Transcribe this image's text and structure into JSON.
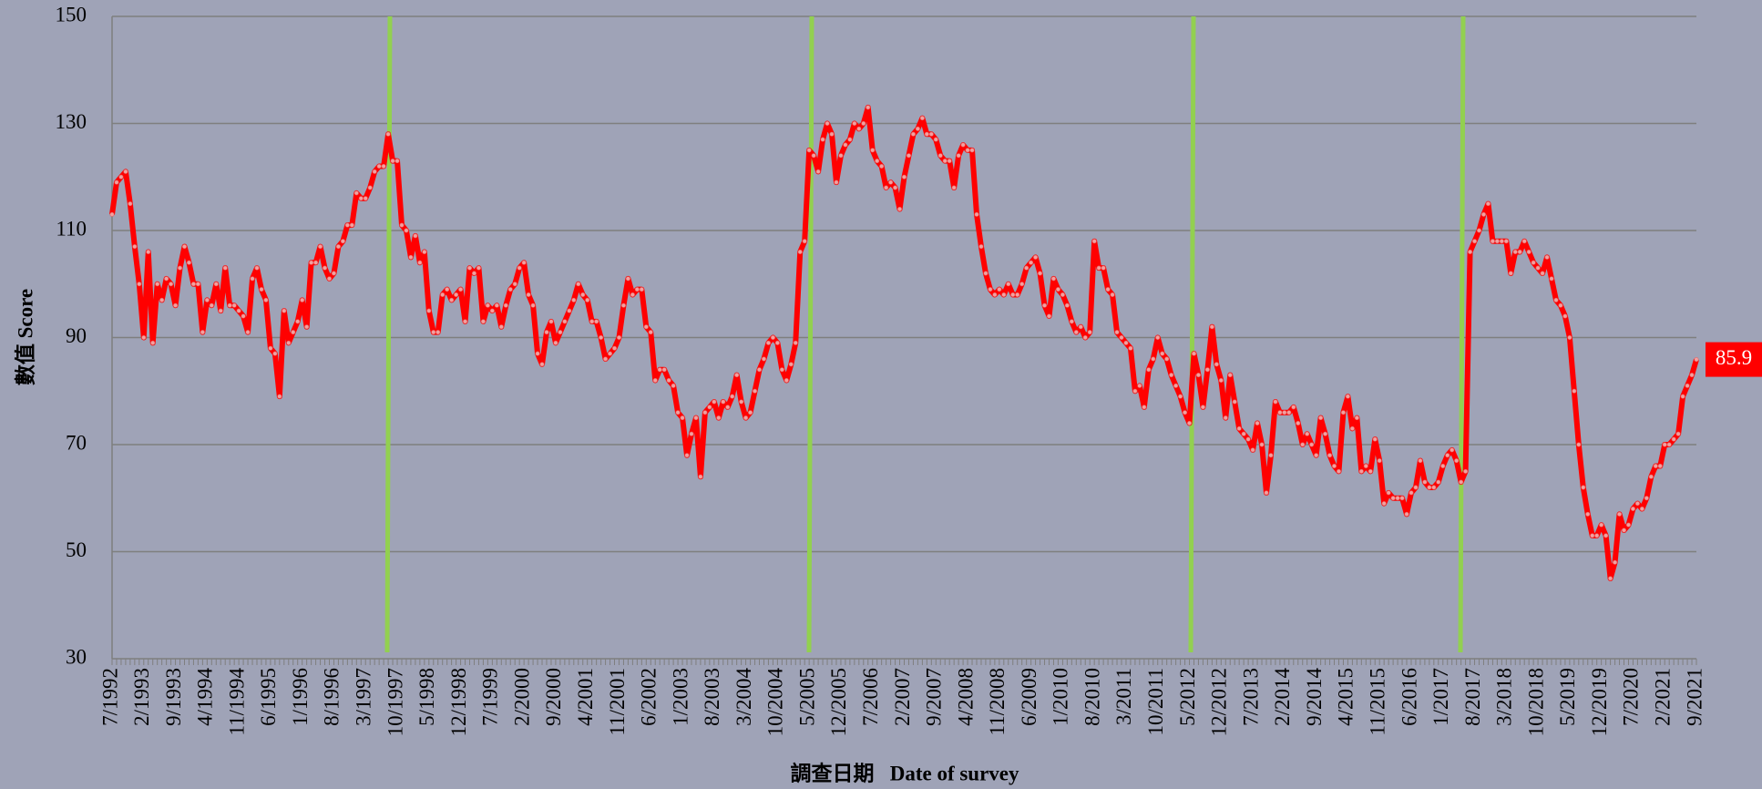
{
  "chart_data": {
    "type": "line",
    "ylabel": "數值 Score",
    "xlabel": "調查日期   Date of survey",
    "color": "#ff0000",
    "ylim": [
      30,
      150
    ],
    "yticks": [
      30,
      50,
      70,
      90,
      110,
      130,
      150
    ],
    "grid": true,
    "categories": [
      "7/1992",
      null,
      null,
      null,
      null,
      null,
      null,
      "2/1993",
      null,
      null,
      null,
      null,
      null,
      null,
      "9/1993",
      null,
      null,
      null,
      null,
      null,
      null,
      "4/1994",
      null,
      null,
      null,
      null,
      null,
      null,
      "11/1994",
      null,
      null,
      null,
      null,
      null,
      null,
      "6/1995",
      null,
      null,
      null,
      null,
      null,
      null,
      "1/1996",
      null,
      null,
      null,
      null,
      null,
      null,
      "8/1996",
      null,
      null,
      null,
      null,
      null,
      null,
      "3/1997",
      null,
      null,
      null,
      null,
      null,
      null,
      "10/1997",
      null,
      null,
      null,
      null,
      null,
      null,
      "5/1998",
      null,
      null,
      null,
      null,
      null,
      null,
      "12/1998",
      null,
      null,
      null,
      null,
      null,
      null,
      "7/1999",
      null,
      null,
      null,
      null,
      null,
      null,
      "2/2000",
      null,
      null,
      null,
      null,
      null,
      null,
      "9/2000",
      null,
      null,
      null,
      null,
      null,
      null,
      "4/2001",
      null,
      null,
      null,
      null,
      null,
      null,
      "11/2001",
      null,
      null,
      null,
      null,
      null,
      null,
      "6/2002",
      null,
      null,
      null,
      null,
      null,
      null,
      "1/2003",
      null,
      null,
      null,
      null,
      null,
      null,
      "8/2003",
      null,
      null,
      null,
      null,
      null,
      null,
      "3/2004",
      null,
      null,
      null,
      null,
      null,
      null,
      "10/2004",
      null,
      null,
      null,
      null,
      null,
      null,
      "5/2005",
      null,
      null,
      null,
      null,
      null,
      null,
      "12/2005",
      null,
      null,
      null,
      null,
      null,
      null,
      "7/2006",
      null,
      null,
      null,
      null,
      null,
      null,
      "2/2007",
      null,
      null,
      null,
      null,
      null,
      null,
      "9/2007",
      null,
      null,
      null,
      null,
      null,
      null,
      "4/2008",
      null,
      null,
      null,
      null,
      null,
      null,
      "11/2008",
      null,
      null,
      null,
      null,
      null,
      null,
      "6/2009",
      null,
      null,
      null,
      null,
      null,
      null,
      "1/2010",
      null,
      null,
      null,
      null,
      null,
      null,
      "8/2010",
      null,
      null,
      null,
      null,
      null,
      null,
      "3/2011",
      null,
      null,
      null,
      null,
      null,
      null,
      "10/2011",
      null,
      null,
      null,
      null,
      null,
      null,
      "5/2012",
      null,
      null,
      null,
      null,
      null,
      null,
      "12/2012",
      null,
      null,
      null,
      null,
      null,
      null,
      "7/2013",
      null,
      null,
      null,
      null,
      null,
      null,
      "2/2014",
      null,
      null,
      null,
      null,
      null,
      null,
      "9/2014",
      null,
      null,
      null,
      null,
      null,
      null,
      "4/2015",
      null,
      null,
      null,
      null,
      null,
      null,
      "11/2015",
      null,
      null,
      null,
      null,
      null,
      null,
      "6/2016",
      null,
      null,
      null,
      null,
      null,
      null,
      "1/2017",
      null,
      null,
      null,
      null,
      null,
      null,
      "8/2017",
      null,
      null,
      null,
      null,
      null,
      null,
      "3/2018",
      null,
      null,
      null,
      null,
      null,
      null,
      "10/2018",
      null,
      null,
      null,
      null,
      null,
      null,
      "5/2019",
      null,
      null,
      null,
      null,
      null,
      null,
      "12/2019",
      null,
      null,
      null,
      null,
      null,
      null,
      "7/2020",
      null,
      null,
      null,
      null,
      null,
      null,
      "2/2021",
      null,
      null,
      null,
      null,
      null,
      null,
      "9/2021"
    ],
    "values": [
      113,
      119,
      120,
      121,
      115,
      107,
      100,
      90,
      106,
      89,
      100,
      97,
      101,
      100,
      96,
      103,
      107,
      104,
      100,
      100,
      91,
      97,
      96,
      100,
      95,
      103,
      96,
      96,
      95,
      94,
      91,
      101,
      103,
      99,
      97,
      88,
      87,
      79,
      95,
      89,
      91,
      93,
      97,
      92,
      104,
      104,
      107,
      103,
      101,
      102,
      107,
      108,
      111,
      111,
      117,
      116,
      116,
      118,
      121,
      122,
      122,
      128,
      123,
      123,
      111,
      110,
      105,
      109,
      104,
      106,
      95,
      91,
      91,
      98,
      99,
      97,
      98,
      99,
      93,
      103,
      102,
      103,
      93,
      96,
      95,
      96,
      92,
      96,
      99,
      100,
      103,
      104,
      98,
      96,
      87,
      85,
      91,
      93,
      89,
      91,
      93,
      95,
      97,
      100,
      98,
      97,
      93,
      93,
      90,
      86,
      87,
      88,
      90,
      96,
      101,
      98,
      99,
      99,
      92,
      91,
      82,
      84,
      84,
      82,
      81,
      76,
      75,
      68,
      72,
      75,
      64,
      76,
      77,
      78,
      75,
      78,
      77,
      79,
      83,
      78,
      75,
      76,
      80,
      84,
      86,
      89,
      90,
      89,
      84,
      82,
      85,
      89,
      106,
      108,
      125,
      124,
      121,
      127,
      130,
      128,
      119,
      124,
      126,
      127,
      130,
      129,
      130,
      133,
      125,
      123,
      122,
      118,
      119,
      118,
      114,
      120,
      124,
      128,
      129,
      131,
      128,
      128,
      127,
      124,
      123,
      123,
      118,
      124,
      126,
      125,
      125,
      113,
      107,
      102,
      99,
      98,
      99,
      98,
      100,
      98,
      98,
      100,
      103,
      104,
      105,
      102,
      96,
      94,
      101,
      99,
      98,
      96,
      93,
      91,
      92,
      90,
      91,
      108,
      103,
      103,
      99,
      98,
      91,
      90,
      89,
      88,
      80,
      81,
      77,
      84,
      86,
      90,
      87,
      86,
      83,
      81,
      79,
      76,
      74,
      87,
      83,
      77,
      84,
      92,
      85,
      82,
      75,
      83,
      78,
      73,
      72,
      71,
      69,
      74,
      70,
      61,
      68,
      78,
      76,
      76,
      76,
      77,
      74,
      70,
      72,
      70,
      68,
      75,
      72,
      68,
      66,
      65,
      76,
      79,
      73,
      75,
      65,
      66,
      65,
      71,
      67,
      59,
      61,
      60,
      60,
      60,
      57,
      61,
      62,
      67,
      63,
      62,
      62,
      63,
      66,
      68,
      69,
      67,
      63,
      65,
      106,
      108,
      110,
      113,
      115,
      108,
      108,
      108,
      108,
      102,
      106,
      106,
      108,
      106,
      104,
      103,
      102,
      105,
      101,
      97,
      96,
      94,
      90,
      80,
      70,
      62,
      57,
      53,
      53,
      55,
      53,
      45,
      48,
      57,
      54,
      55,
      58,
      59,
      58,
      60,
      64,
      66,
      66,
      70,
      70,
      71,
      72,
      79,
      81,
      83,
      85.9
    ]
  }
}
